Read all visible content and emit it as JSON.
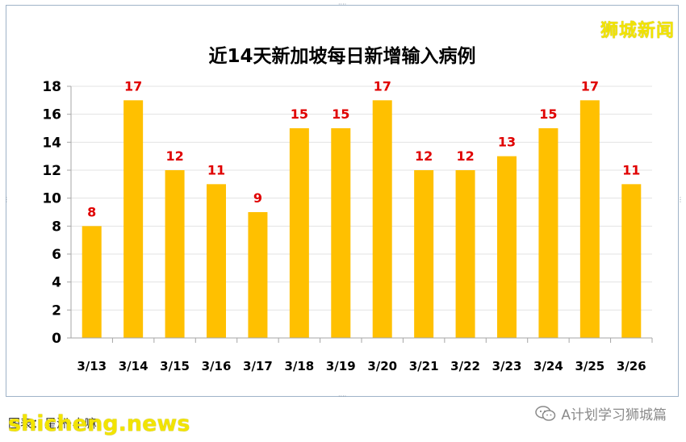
{
  "watermark_top": "狮城新闻",
  "watermark_site": "shicheng.news",
  "source_note": "图表：星洲·小嘛",
  "wechat_label": "A计划学习狮城篇",
  "colors": {
    "bar": "#FFC000",
    "data_label": "#E00000",
    "frame": "#9fb3c8"
  },
  "chart_data": {
    "type": "bar",
    "title": "近14天新加坡每日新增输入病例",
    "categories": [
      "3/13",
      "3/14",
      "3/15",
      "3/16",
      "3/17",
      "3/18",
      "3/19",
      "3/20",
      "3/21",
      "3/22",
      "3/23",
      "3/24",
      "3/25",
      "3/26"
    ],
    "values": [
      8,
      17,
      12,
      11,
      9,
      15,
      15,
      17,
      12,
      12,
      13,
      15,
      17,
      11
    ],
    "ylim": [
      0,
      18
    ],
    "yticks": [
      0,
      2,
      4,
      6,
      8,
      10,
      12,
      14,
      16,
      18
    ],
    "xlabel": "",
    "ylabel": "",
    "grid": true,
    "legend": "none"
  }
}
